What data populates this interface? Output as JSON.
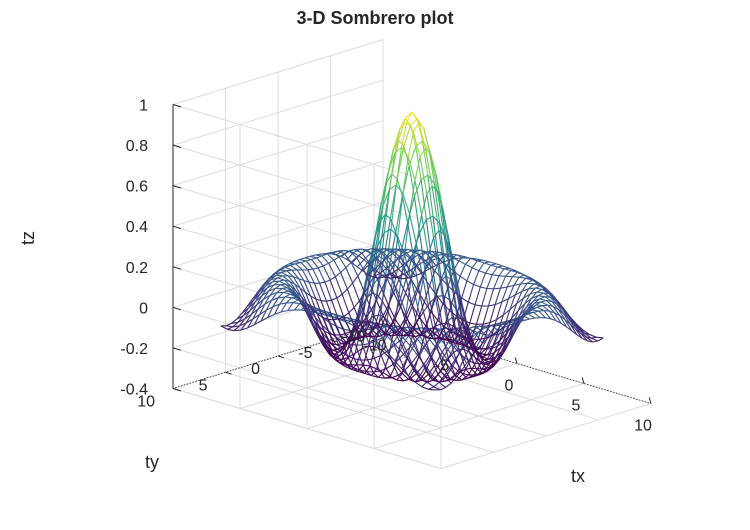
{
  "chart_data": {
    "type": "surface-mesh",
    "title": "3-D Sombrero plot",
    "function": "z = sin(r)/r, r = sqrt(tx^2 + ty^2)",
    "x": {
      "label": "tx",
      "min": -8,
      "max": 8,
      "step": 0.5
    },
    "y": {
      "label": "ty",
      "min": -8,
      "max": 8,
      "step": 0.5
    },
    "xlabel": "tx",
    "ylabel": "ty",
    "zlabel": "tz",
    "xlim": [
      -10,
      10
    ],
    "ylim": [
      -10,
      10
    ],
    "zlim": [
      -0.4,
      1
    ],
    "xticks": [
      "-10",
      "-5",
      "0",
      "5",
      "10"
    ],
    "yticks": [
      "-10",
      "-5",
      "0",
      "5",
      "10"
    ],
    "zticks": [
      "-0.4",
      "-0.2",
      "0",
      "0.2",
      "0.4",
      "0.6",
      "0.8",
      "1"
    ],
    "grid": true,
    "colormap": [
      "#440154",
      "#3b528b",
      "#21918c",
      "#5ec962",
      "#fde725"
    ],
    "axis_color": "#262626",
    "grid_color": "#dcdcdc",
    "view": {
      "azimuth_deg": -37.5,
      "elevation_deg": 30
    }
  }
}
